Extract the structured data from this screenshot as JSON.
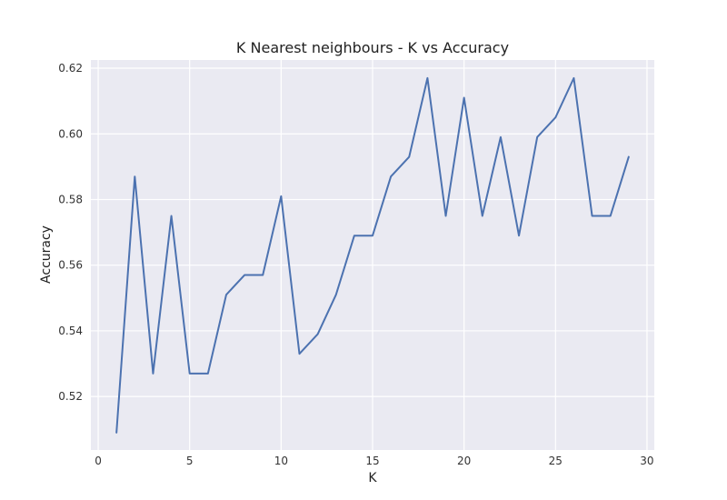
{
  "chart_data": {
    "type": "line",
    "title": "K Nearest neighbours - K vs Accuracy",
    "xlabel": "K",
    "ylabel": "Accuracy",
    "xlim": [
      -0.4,
      30.4
    ],
    "ylim": [
      0.5037,
      0.6225
    ],
    "xticks": [
      0,
      5,
      10,
      15,
      20,
      25,
      30
    ],
    "xtick_labels": [
      "0",
      "5",
      "10",
      "15",
      "20",
      "25",
      "30"
    ],
    "yticks": [
      0.52,
      0.54,
      0.56,
      0.58,
      0.6,
      0.62
    ],
    "ytick_labels": [
      "0.52",
      "0.54",
      "0.56",
      "0.58",
      "0.60",
      "0.62"
    ],
    "grid": true,
    "style": {
      "plot_bg": "#EAEAF2",
      "grid_color": "#FFFFFF",
      "line_color": "#4C72B0"
    },
    "series": [
      {
        "x": [
          1,
          2,
          3,
          4,
          5,
          6,
          7,
          8,
          9,
          10,
          11,
          12,
          13,
          14,
          15,
          16,
          17,
          18,
          19,
          20,
          21,
          22,
          23,
          24,
          25,
          26,
          27,
          28,
          29
        ],
        "values": [
          0.509,
          0.587,
          0.527,
          0.575,
          0.527,
          0.527,
          0.551,
          0.557,
          0.557,
          0.581,
          0.533,
          0.539,
          0.551,
          0.569,
          0.569,
          0.587,
          0.593,
          0.617,
          0.575,
          0.611,
          0.575,
          0.599,
          0.569,
          0.599,
          0.605,
          0.617,
          0.575,
          0.575,
          0.593
        ]
      }
    ]
  }
}
